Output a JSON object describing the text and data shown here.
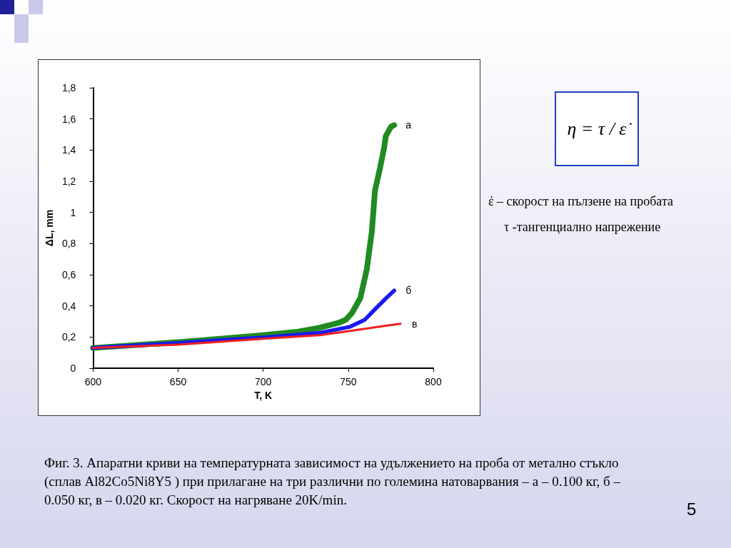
{
  "chart_data": {
    "type": "line",
    "xlabel": "T, K",
    "ylabel": "ΔL, mm",
    "xlim": [
      600,
      800
    ],
    "xticks": [
      600,
      650,
      700,
      750,
      800
    ],
    "ylim": [
      0,
      1.8
    ],
    "yticks": [
      0,
      {
        "value": 0.2,
        "label": "0,2"
      },
      {
        "value": 0.4,
        "label": "0,4"
      },
      {
        "value": 0.6,
        "label": "0,6"
      },
      {
        "value": 0.8,
        "label": "0,8"
      },
      1,
      {
        "value": 1.2,
        "label": "1,2"
      },
      {
        "value": 1.4,
        "label": "1,4"
      },
      {
        "value": 1.6,
        "label": "1,6"
      },
      {
        "value": 1.8,
        "label": "1,8"
      }
    ],
    "grid": false,
    "marker": "none",
    "line_style": "solid",
    "legend": false,
    "series": [
      {
        "name": "а",
        "color": "#218b21",
        "x": [
          600,
          650,
          700,
          720.8,
          733.4,
          744,
          748.5,
          752.2,
          757.1,
          760.9,
          763.9,
          765.7,
          768.4,
          771,
          772.1,
          775.1,
          777
        ],
        "values": [
          0.13,
          0.167,
          0.212,
          0.235,
          0.26,
          0.29,
          0.31,
          0.355,
          0.45,
          0.635,
          0.88,
          1.14,
          1.27,
          1.41,
          1.49,
          1.55,
          1.56
        ]
      },
      {
        "name": "б",
        "color": "#1a1aee",
        "x": [
          600,
          650,
          700,
          733.4,
          750.7,
          759.6,
          765.9,
          772.1,
          777
        ],
        "values": [
          0.13,
          0.162,
          0.197,
          0.227,
          0.265,
          0.31,
          0.38,
          0.448,
          0.498
        ]
      },
      {
        "name": "в",
        "color": "#ee2020",
        "x": [
          600,
          650,
          700,
          733.4,
          753.4,
          772.1,
          780.7
        ],
        "values": [
          0.13,
          0.151,
          0.189,
          0.212,
          0.243,
          0.273,
          0.285
        ]
      }
    ],
    "annotations": [
      "η = τ / ε̇",
      "έ – скорост на пълзене на пробата",
      "τ -тангенциално напрежение",
      "Фиг. 3. Апаратни криви на температурната зависимост на удължението на проба от метално стъкло (сплав Al82Co5Ni8Y5 ) при прилагане на три различни по големина натоварвания – а – 0.100 кг, б – 0.050 кг, в – 0.020 кг. Скорост на нагряване 20K/min.",
      "5"
    ]
  }
}
